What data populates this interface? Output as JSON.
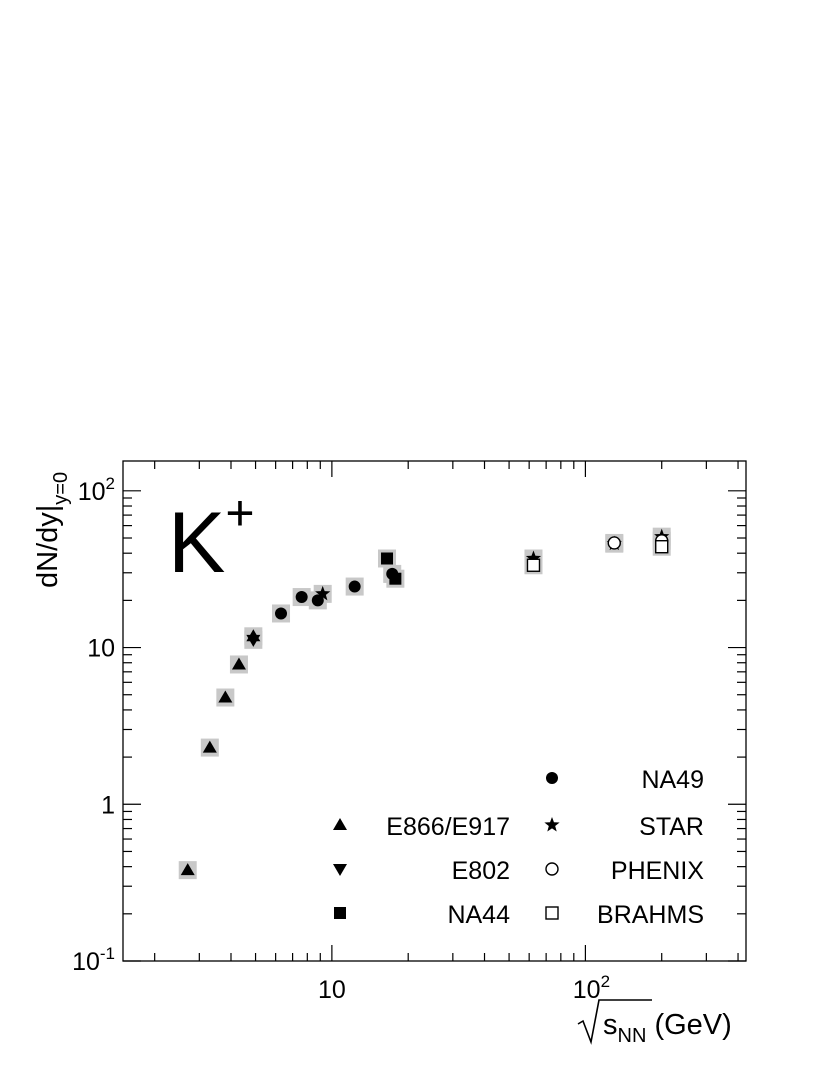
{
  "chart_data": {
    "type": "scatter",
    "x_scale": "log",
    "y_scale": "log",
    "xlim": [
      1.5,
      430
    ],
    "ylim": [
      0.1,
      155
    ],
    "grid": false,
    "legend_placement": "bottom-right",
    "annotation": "K",
    "annotation_sup": "+",
    "xlabel": {
      "main": "s",
      "sub": "NN",
      "unit": " (GeV)"
    },
    "ylabel": {
      "main": "dN/dy|",
      "sub": "y=0"
    },
    "x_ticks": [
      {
        "value": 10,
        "base": "10",
        "exp": ""
      },
      {
        "value": 100,
        "base": "10",
        "exp": "2"
      }
    ],
    "y_ticks": [
      {
        "value": 0.1,
        "base": "10",
        "exp": "-1"
      },
      {
        "value": 1,
        "base": "1",
        "exp": ""
      },
      {
        "value": 10,
        "base": "10",
        "exp": ""
      },
      {
        "value": 100,
        "base": "10",
        "exp": "2"
      }
    ],
    "series": [
      {
        "name": "E866/E917",
        "marker": "triangle-up",
        "filled": true,
        "points": [
          {
            "x": 2.7,
            "y": 0.38
          },
          {
            "x": 3.3,
            "y": 2.3
          },
          {
            "x": 3.8,
            "y": 4.8
          },
          {
            "x": 4.3,
            "y": 7.8
          },
          {
            "x": 4.9,
            "y": 11.8
          }
        ]
      },
      {
        "name": "E802",
        "marker": "triangle-down",
        "filled": true,
        "points": [
          {
            "x": 4.9,
            "y": 11.2
          }
        ]
      },
      {
        "name": "NA44",
        "marker": "square",
        "filled": true,
        "points": [
          {
            "x": 16.5,
            "y": 37
          },
          {
            "x": 17.8,
            "y": 27.5
          }
        ]
      },
      {
        "name": "NA49",
        "marker": "circle",
        "filled": true,
        "points": [
          {
            "x": 6.3,
            "y": 16.5
          },
          {
            "x": 7.6,
            "y": 21
          },
          {
            "x": 8.8,
            "y": 20
          },
          {
            "x": 12.3,
            "y": 24.5
          },
          {
            "x": 17.3,
            "y": 29.5
          }
        ]
      },
      {
        "name": "STAR",
        "marker": "star",
        "filled": true,
        "points": [
          {
            "x": 9.2,
            "y": 22
          },
          {
            "x": 62.4,
            "y": 37
          },
          {
            "x": 130,
            "y": 46
          },
          {
            "x": 200,
            "y": 51
          }
        ]
      },
      {
        "name": "PHENIX",
        "marker": "circle",
        "filled": false,
        "points": [
          {
            "x": 130,
            "y": 46.5
          },
          {
            "x": 200,
            "y": 48
          }
        ]
      },
      {
        "name": "BRAHMS",
        "marker": "square",
        "filled": false,
        "points": [
          {
            "x": 62.4,
            "y": 33.5
          },
          {
            "x": 200,
            "y": 44
          }
        ]
      }
    ],
    "legend": [
      {
        "name": "NA49",
        "marker": "circle",
        "filled": true,
        "column": "right",
        "row": 0
      },
      {
        "name": "E866/E917",
        "marker": "triangle-up",
        "filled": true,
        "column": "left",
        "row": 1
      },
      {
        "name": "STAR",
        "marker": "star",
        "filled": true,
        "column": "right",
        "row": 1
      },
      {
        "name": "E802",
        "marker": "triangle-down",
        "filled": true,
        "column": "left",
        "row": 2
      },
      {
        "name": "PHENIX",
        "marker": "circle",
        "filled": false,
        "column": "right",
        "row": 2
      },
      {
        "name": "NA44",
        "marker": "square",
        "filled": true,
        "column": "left",
        "row": 3
      },
      {
        "name": "BRAHMS",
        "marker": "square",
        "filled": false,
        "column": "right",
        "row": 3
      }
    ]
  }
}
